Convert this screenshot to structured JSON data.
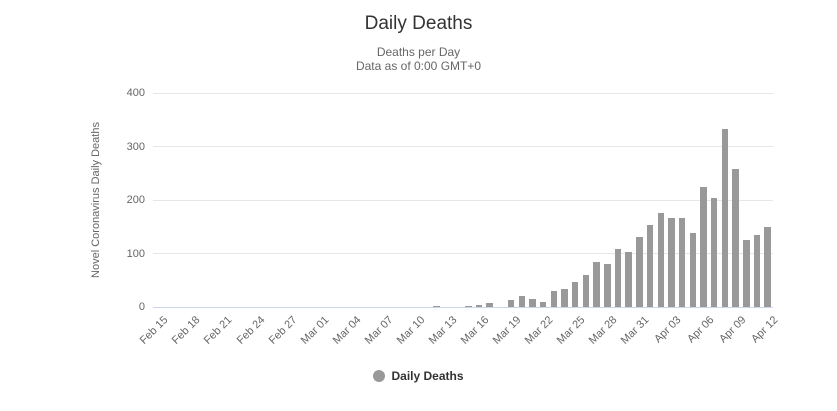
{
  "chart_data": {
    "type": "bar",
    "title": "Daily Deaths",
    "subtitle_line1": "Deaths per Day",
    "subtitle_line2": "Data as of 0:00 GMT+0",
    "ylabel": "Novel Coronavirus Daily Deaths",
    "legend_label": "Daily Deaths",
    "ylim": [
      0,
      400
    ],
    "yticks": [
      0,
      100,
      200,
      300,
      400
    ],
    "xtick_every": 3,
    "grid": true,
    "legend_position": "bottom",
    "colors": {
      "bar": "#999999",
      "grid": "#e6e6e6",
      "axis_line": "#ccd6eb",
      "title": "#333333",
      "subtitle": "#666666",
      "axis_label": "#666666",
      "legend_text": "#333333"
    },
    "categories": [
      "Feb 15",
      "Feb 16",
      "Feb 17",
      "Feb 18",
      "Feb 19",
      "Feb 20",
      "Feb 21",
      "Feb 22",
      "Feb 23",
      "Feb 24",
      "Feb 25",
      "Feb 26",
      "Feb 27",
      "Feb 28",
      "Feb 29",
      "Mar 01",
      "Mar 02",
      "Mar 03",
      "Mar 04",
      "Mar 05",
      "Mar 06",
      "Mar 07",
      "Mar 08",
      "Mar 09",
      "Mar 10",
      "Mar 11",
      "Mar 12",
      "Mar 13",
      "Mar 14",
      "Mar 15",
      "Mar 16",
      "Mar 17",
      "Mar 18",
      "Mar 19",
      "Mar 20",
      "Mar 21",
      "Mar 22",
      "Mar 23",
      "Mar 24",
      "Mar 25",
      "Mar 26",
      "Mar 27",
      "Mar 28",
      "Mar 29",
      "Mar 30",
      "Mar 31",
      "Apr 01",
      "Apr 02",
      "Apr 03",
      "Apr 04",
      "Apr 05",
      "Apr 06",
      "Apr 07",
      "Apr 08",
      "Apr 09",
      "Apr 10",
      "Apr 11",
      "Apr 12"
    ],
    "values": [
      0,
      0,
      0,
      0,
      0,
      0,
      0,
      0,
      0,
      0,
      0,
      0,
      0,
      0,
      0,
      0,
      0,
      0,
      0,
      0,
      0,
      0,
      0,
      0,
      0,
      0,
      2,
      0,
      0,
      2,
      3,
      8,
      0,
      13,
      21,
      15,
      9,
      30,
      34,
      46,
      60,
      84,
      81,
      108,
      102,
      130,
      153,
      175,
      167,
      167,
      139,
      225,
      204,
      333,
      258,
      126,
      134,
      150
    ]
  }
}
